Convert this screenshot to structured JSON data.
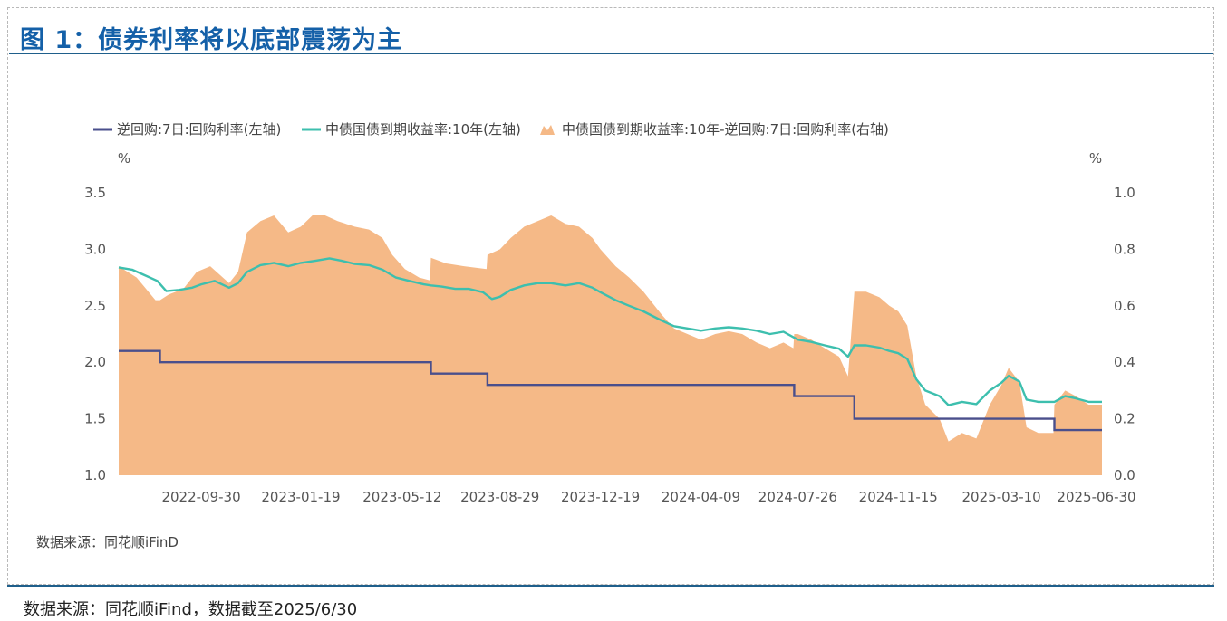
{
  "figure": {
    "title": "图 1：债券利率将以底部震荡为主",
    "inner_source": "数据来源：同花顺iFinD",
    "outer_source": "数据来源：同花顺iFind，数据截至2025/6/30"
  },
  "chart_data": {
    "type": "line+area",
    "left_unit": "%",
    "right_unit": "%",
    "left_axis": {
      "min": 1.0,
      "max": 3.5,
      "ticks": [
        "1.0",
        "1.5",
        "2.0",
        "2.5",
        "3.0",
        "3.5"
      ]
    },
    "right_axis": {
      "min": 0.0,
      "max": 1.0,
      "ticks": [
        "0.0",
        "0.2",
        "0.4",
        "0.6",
        "0.8",
        "1.0"
      ]
    },
    "x_range": [
      "2022-06-30",
      "2025-06-30"
    ],
    "x_ticks": [
      "2022-09-30",
      "2023-01-19",
      "2023-05-12",
      "2023-08-29",
      "2023-12-19",
      "2024-04-09",
      "2024-07-26",
      "2024-11-15",
      "2025-03-10",
      "2025-06-30"
    ],
    "legend_position": "top",
    "colors": {
      "repo": "#4a4f8c",
      "cgb10y": "#3dbfae",
      "spread": "#f5b987"
    },
    "series": [
      {
        "name": "逆回购:7日:回购利率(左轴)",
        "axis": "left",
        "kind": "step",
        "points": [
          [
            "2022-06-30",
            2.1
          ],
          [
            "2022-08-15",
            2.1
          ],
          [
            "2022-08-15",
            2.0
          ],
          [
            "2023-06-13",
            2.0
          ],
          [
            "2023-06-13",
            1.9
          ],
          [
            "2023-08-15",
            1.9
          ],
          [
            "2023-08-15",
            1.8
          ],
          [
            "2024-07-22",
            1.8
          ],
          [
            "2024-07-22",
            1.7
          ],
          [
            "2024-09-27",
            1.7
          ],
          [
            "2024-09-27",
            1.5
          ],
          [
            "2025-05-08",
            1.5
          ],
          [
            "2025-05-08",
            1.4
          ],
          [
            "2025-06-30",
            1.4
          ]
        ]
      },
      {
        "name": "中债国债到期收益率:10年(左轴)",
        "axis": "left",
        "kind": "line",
        "points": [
          [
            "2022-06-30",
            2.84
          ],
          [
            "2022-07-15",
            2.82
          ],
          [
            "2022-08-01",
            2.76
          ],
          [
            "2022-08-12",
            2.72
          ],
          [
            "2022-08-22",
            2.63
          ],
          [
            "2022-09-05",
            2.64
          ],
          [
            "2022-09-20",
            2.66
          ],
          [
            "2022-09-30",
            2.69
          ],
          [
            "2022-10-15",
            2.72
          ],
          [
            "2022-10-31",
            2.66
          ],
          [
            "2022-11-10",
            2.7
          ],
          [
            "2022-11-20",
            2.8
          ],
          [
            "2022-12-05",
            2.86
          ],
          [
            "2022-12-20",
            2.88
          ],
          [
            "2023-01-05",
            2.85
          ],
          [
            "2023-01-19",
            2.88
          ],
          [
            "2023-02-05",
            2.9
          ],
          [
            "2023-02-20",
            2.92
          ],
          [
            "2023-03-05",
            2.9
          ],
          [
            "2023-03-20",
            2.87
          ],
          [
            "2023-04-05",
            2.86
          ],
          [
            "2023-04-20",
            2.82
          ],
          [
            "2023-05-05",
            2.75
          ],
          [
            "2023-05-20",
            2.72
          ],
          [
            "2023-06-05",
            2.69
          ],
          [
            "2023-06-13",
            2.68
          ],
          [
            "2023-06-25",
            2.67
          ],
          [
            "2023-07-10",
            2.65
          ],
          [
            "2023-07-25",
            2.65
          ],
          [
            "2023-08-10",
            2.62
          ],
          [
            "2023-08-20",
            2.56
          ],
          [
            "2023-08-29",
            2.58
          ],
          [
            "2023-09-10",
            2.64
          ],
          [
            "2023-09-25",
            2.68
          ],
          [
            "2023-10-10",
            2.7
          ],
          [
            "2023-10-25",
            2.7
          ],
          [
            "2023-11-10",
            2.68
          ],
          [
            "2023-11-25",
            2.7
          ],
          [
            "2023-12-10",
            2.66
          ],
          [
            "2023-12-19",
            2.62
          ],
          [
            "2024-01-05",
            2.55
          ],
          [
            "2024-01-20",
            2.5
          ],
          [
            "2024-02-05",
            2.45
          ],
          [
            "2024-02-25",
            2.37
          ],
          [
            "2024-03-10",
            2.32
          ],
          [
            "2024-03-25",
            2.3
          ],
          [
            "2024-04-09",
            2.28
          ],
          [
            "2024-04-25",
            2.3
          ],
          [
            "2024-05-10",
            2.31
          ],
          [
            "2024-05-25",
            2.3
          ],
          [
            "2024-06-10",
            2.28
          ],
          [
            "2024-06-25",
            2.25
          ],
          [
            "2024-07-10",
            2.27
          ],
          [
            "2024-07-26",
            2.2
          ],
          [
            "2024-08-10",
            2.18
          ],
          [
            "2024-08-25",
            2.15
          ],
          [
            "2024-09-10",
            2.12
          ],
          [
            "2024-09-20",
            2.05
          ],
          [
            "2024-09-27",
            2.15
          ],
          [
            "2024-10-10",
            2.15
          ],
          [
            "2024-10-25",
            2.13
          ],
          [
            "2024-11-05",
            2.1
          ],
          [
            "2024-11-15",
            2.08
          ],
          [
            "2024-11-25",
            2.03
          ],
          [
            "2024-12-05",
            1.85
          ],
          [
            "2024-12-15",
            1.75
          ],
          [
            "2024-12-31",
            1.7
          ],
          [
            "2025-01-10",
            1.62
          ],
          [
            "2025-01-25",
            1.65
          ],
          [
            "2025-02-10",
            1.63
          ],
          [
            "2025-02-25",
            1.75
          ],
          [
            "2025-03-10",
            1.82
          ],
          [
            "2025-03-18",
            1.88
          ],
          [
            "2025-03-30",
            1.83
          ],
          [
            "2025-04-07",
            1.67
          ],
          [
            "2025-04-20",
            1.65
          ],
          [
            "2025-05-08",
            1.65
          ],
          [
            "2025-05-20",
            1.7
          ],
          [
            "2025-06-01",
            1.68
          ],
          [
            "2025-06-15",
            1.65
          ],
          [
            "2025-06-30",
            1.65
          ]
        ]
      },
      {
        "name": "中债国债到期收益率:10年-逆回购:7日:回购利率(右轴)",
        "axis": "right",
        "kind": "area",
        "points": [
          [
            "2022-06-30",
            0.74
          ],
          [
            "2022-07-20",
            0.7
          ],
          [
            "2022-08-10",
            0.62
          ],
          [
            "2022-08-15",
            0.62
          ],
          [
            "2022-08-25",
            0.64
          ],
          [
            "2022-09-10",
            0.66
          ],
          [
            "2022-09-25",
            0.72
          ],
          [
            "2022-10-10",
            0.74
          ],
          [
            "2022-10-31",
            0.68
          ],
          [
            "2022-11-10",
            0.72
          ],
          [
            "2022-11-20",
            0.86
          ],
          [
            "2022-12-05",
            0.9
          ],
          [
            "2022-12-20",
            0.92
          ],
          [
            "2023-01-05",
            0.86
          ],
          [
            "2023-01-19",
            0.88
          ],
          [
            "2023-02-01",
            0.92
          ],
          [
            "2023-02-15",
            0.92
          ],
          [
            "2023-03-01",
            0.9
          ],
          [
            "2023-03-20",
            0.88
          ],
          [
            "2023-04-05",
            0.87
          ],
          [
            "2023-04-20",
            0.84
          ],
          [
            "2023-05-01",
            0.78
          ],
          [
            "2023-05-15",
            0.73
          ],
          [
            "2023-05-31",
            0.7
          ],
          [
            "2023-06-12",
            0.69
          ],
          [
            "2023-06-13",
            0.77
          ],
          [
            "2023-06-30",
            0.75
          ],
          [
            "2023-07-20",
            0.74
          ],
          [
            "2023-08-14",
            0.73
          ],
          [
            "2023-08-15",
            0.78
          ],
          [
            "2023-08-29",
            0.8
          ],
          [
            "2023-09-10",
            0.84
          ],
          [
            "2023-09-25",
            0.88
          ],
          [
            "2023-10-10",
            0.9
          ],
          [
            "2023-10-25",
            0.92
          ],
          [
            "2023-11-10",
            0.89
          ],
          [
            "2023-11-25",
            0.88
          ],
          [
            "2023-12-10",
            0.84
          ],
          [
            "2023-12-19",
            0.8
          ],
          [
            "2024-01-05",
            0.74
          ],
          [
            "2024-01-20",
            0.7
          ],
          [
            "2024-02-05",
            0.65
          ],
          [
            "2024-02-25",
            0.57
          ],
          [
            "2024-03-10",
            0.52
          ],
          [
            "2024-03-25",
            0.5
          ],
          [
            "2024-04-09",
            0.48
          ],
          [
            "2024-04-25",
            0.5
          ],
          [
            "2024-05-10",
            0.51
          ],
          [
            "2024-05-25",
            0.5
          ],
          [
            "2024-06-10",
            0.47
          ],
          [
            "2024-06-25",
            0.45
          ],
          [
            "2024-07-10",
            0.47
          ],
          [
            "2024-07-21",
            0.45
          ],
          [
            "2024-07-22",
            0.5
          ],
          [
            "2024-07-26",
            0.5
          ],
          [
            "2024-08-10",
            0.48
          ],
          [
            "2024-08-25",
            0.45
          ],
          [
            "2024-09-10",
            0.42
          ],
          [
            "2024-09-20",
            0.35
          ],
          [
            "2024-09-27",
            0.65
          ],
          [
            "2024-10-10",
            0.65
          ],
          [
            "2024-10-25",
            0.63
          ],
          [
            "2024-11-05",
            0.6
          ],
          [
            "2024-11-15",
            0.58
          ],
          [
            "2024-11-25",
            0.53
          ],
          [
            "2024-12-05",
            0.35
          ],
          [
            "2024-12-15",
            0.25
          ],
          [
            "2024-12-31",
            0.2
          ],
          [
            "2025-01-10",
            0.12
          ],
          [
            "2025-01-25",
            0.15
          ],
          [
            "2025-02-10",
            0.13
          ],
          [
            "2025-02-25",
            0.25
          ],
          [
            "2025-03-10",
            0.32
          ],
          [
            "2025-03-18",
            0.38
          ],
          [
            "2025-03-30",
            0.33
          ],
          [
            "2025-04-07",
            0.17
          ],
          [
            "2025-04-20",
            0.15
          ],
          [
            "2025-05-07",
            0.15
          ],
          [
            "2025-05-08",
            0.25
          ],
          [
            "2025-05-20",
            0.3
          ],
          [
            "2025-06-01",
            0.28
          ],
          [
            "2025-06-15",
            0.25
          ],
          [
            "2025-06-30",
            0.25
          ]
        ]
      }
    ]
  }
}
